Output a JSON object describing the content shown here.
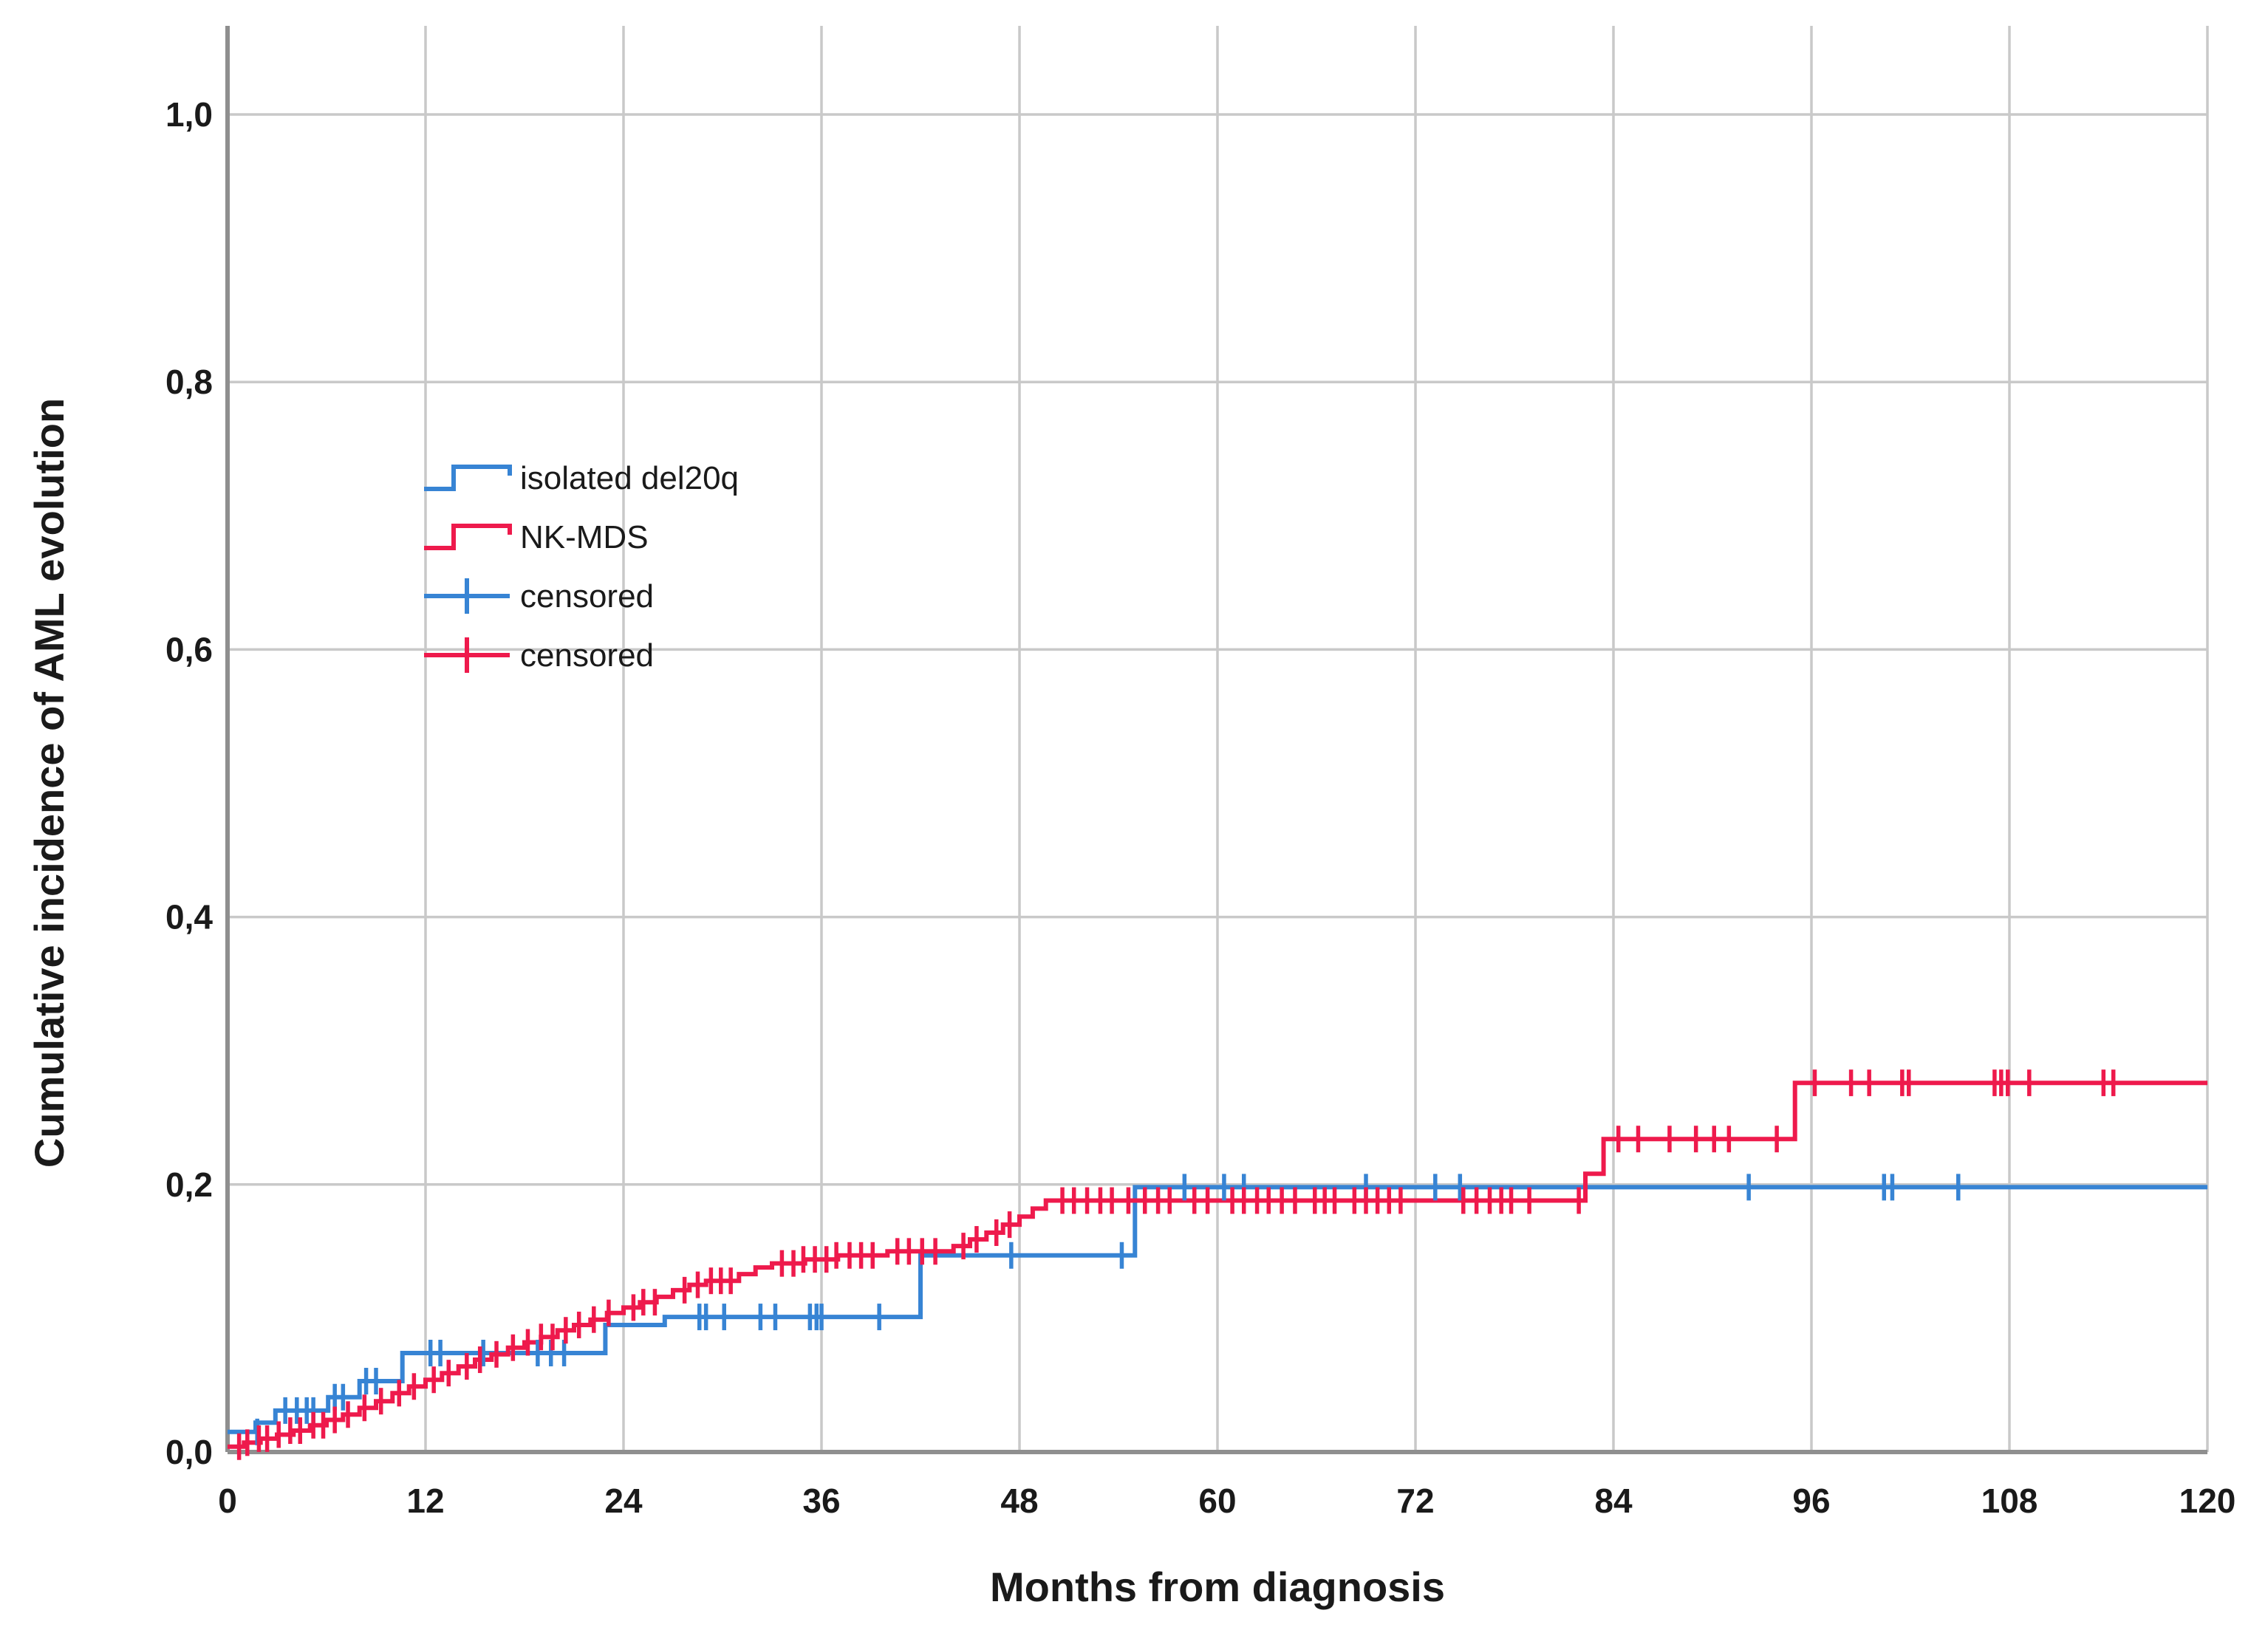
{
  "chart_data": {
    "type": "line",
    "subtype": "step-cumulative-incidence",
    "title": "",
    "xlabel": "Months from diagnosis",
    "ylabel": "Cumulative incidence of AML evolution",
    "xlim": [
      0,
      120
    ],
    "ylim": [
      0,
      1.0
    ],
    "grid": true,
    "grid_color": "#c9c9c9",
    "axis_color": "#8f8f8f",
    "legend_position": "upper-left-inside",
    "xticks": [
      {
        "value": 0,
        "label": "0"
      },
      {
        "value": 12,
        "label": "12"
      },
      {
        "value": 24,
        "label": "24"
      },
      {
        "value": 36,
        "label": "36"
      },
      {
        "value": 48,
        "label": "48"
      },
      {
        "value": 60,
        "label": "60"
      },
      {
        "value": 72,
        "label": "72"
      },
      {
        "value": 84,
        "label": "84"
      },
      {
        "value": 96,
        "label": "96"
      },
      {
        "value": 108,
        "label": "108"
      },
      {
        "value": 120,
        "label": "120"
      }
    ],
    "yticks": [
      {
        "value": 0.0,
        "label": "0,0"
      },
      {
        "value": 0.2,
        "label": "0,2"
      },
      {
        "value": 0.4,
        "label": "0,4"
      },
      {
        "value": 0.6,
        "label": "0,6"
      },
      {
        "value": 0.8,
        "label": "0,8"
      },
      {
        "value": 1.0,
        "label": "1,0"
      }
    ],
    "series": [
      {
        "name": "isolated del20q",
        "censored_label": "censored",
        "color": "#3784d4",
        "type": "step",
        "points": [
          [
            0,
            0.015
          ],
          [
            1.7,
            0.022
          ],
          [
            2.9,
            0.031
          ],
          [
            6.1,
            0.041
          ],
          [
            8.0,
            0.053
          ],
          [
            10.6,
            0.074
          ],
          [
            22.9,
            0.095
          ],
          [
            26.5,
            0.101
          ],
          [
            42.0,
            0.147
          ],
          [
            55.0,
            0.198
          ]
        ],
        "end_x": 120,
        "censored": [
          [
            1.8,
            0.015
          ],
          [
            3.5,
            0.031
          ],
          [
            4.2,
            0.031
          ],
          [
            4.8,
            0.031
          ],
          [
            5.2,
            0.031
          ],
          [
            6.5,
            0.041
          ],
          [
            7.0,
            0.041
          ],
          [
            8.4,
            0.053
          ],
          [
            9.0,
            0.053
          ],
          [
            12.3,
            0.074
          ],
          [
            12.9,
            0.074
          ],
          [
            15.5,
            0.074
          ],
          [
            18.8,
            0.074
          ],
          [
            19.6,
            0.074
          ],
          [
            20.4,
            0.074
          ],
          [
            28.6,
            0.101
          ],
          [
            29.0,
            0.101
          ],
          [
            30.1,
            0.101
          ],
          [
            32.3,
            0.101
          ],
          [
            33.2,
            0.101
          ],
          [
            35.3,
            0.101
          ],
          [
            35.7,
            0.101
          ],
          [
            36.0,
            0.101
          ],
          [
            39.5,
            0.101
          ],
          [
            47.5,
            0.147
          ],
          [
            54.2,
            0.147
          ],
          [
            58.0,
            0.198
          ],
          [
            60.4,
            0.198
          ],
          [
            61.6,
            0.198
          ],
          [
            69.0,
            0.198
          ],
          [
            73.2,
            0.198
          ],
          [
            74.7,
            0.198
          ],
          [
            92.2,
            0.198
          ],
          [
            100.4,
            0.198
          ],
          [
            100.9,
            0.198
          ],
          [
            104.9,
            0.198
          ]
        ]
      },
      {
        "name": "NK-MDS",
        "censored_label": "censored",
        "color": "#ee1a4c",
        "type": "step",
        "points": [
          [
            0,
            0.004
          ],
          [
            1,
            0.007
          ],
          [
            2,
            0.01
          ],
          [
            3,
            0.013
          ],
          [
            4,
            0.016
          ],
          [
            5,
            0.02
          ],
          [
            6,
            0.024
          ],
          [
            7,
            0.028
          ],
          [
            8,
            0.033
          ],
          [
            9,
            0.038
          ],
          [
            10,
            0.044
          ],
          [
            11,
            0.049
          ],
          [
            12,
            0.054
          ],
          [
            13,
            0.059
          ],
          [
            14,
            0.064
          ],
          [
            15,
            0.069
          ],
          [
            16,
            0.073
          ],
          [
            17,
            0.078
          ],
          [
            18,
            0.082
          ],
          [
            19,
            0.086
          ],
          [
            20,
            0.091
          ],
          [
            21,
            0.095
          ],
          [
            22,
            0.099
          ],
          [
            23,
            0.104
          ],
          [
            24,
            0.108
          ],
          [
            25,
            0.112
          ],
          [
            26,
            0.116
          ],
          [
            27,
            0.121
          ],
          [
            28,
            0.125
          ],
          [
            29,
            0.128
          ],
          [
            31,
            0.133
          ],
          [
            32,
            0.138
          ],
          [
            33,
            0.141
          ],
          [
            35,
            0.144
          ],
          [
            37,
            0.147
          ],
          [
            40,
            0.15
          ],
          [
            44,
            0.154
          ],
          [
            45,
            0.159
          ],
          [
            46,
            0.164
          ],
          [
            47,
            0.17
          ],
          [
            48,
            0.176
          ],
          [
            48.8,
            0.182
          ],
          [
            49.6,
            0.188
          ],
          [
            82.3,
            0.208
          ],
          [
            83.4,
            0.234
          ],
          [
            95.0,
            0.276
          ]
        ],
        "end_x": 120,
        "censored": [
          [
            0.7,
            0.004
          ],
          [
            1.2,
            0.007
          ],
          [
            1.9,
            0.01
          ],
          [
            2.4,
            0.01
          ],
          [
            3.1,
            0.013
          ],
          [
            3.8,
            0.016
          ],
          [
            4.4,
            0.016
          ],
          [
            5.2,
            0.02
          ],
          [
            5.8,
            0.02
          ],
          [
            6.5,
            0.024
          ],
          [
            7.3,
            0.028
          ],
          [
            8.3,
            0.033
          ],
          [
            9.3,
            0.038
          ],
          [
            10.4,
            0.044
          ],
          [
            11.3,
            0.049
          ],
          [
            12.5,
            0.054
          ],
          [
            13.4,
            0.059
          ],
          [
            14.5,
            0.064
          ],
          [
            15.3,
            0.069
          ],
          [
            16.3,
            0.073
          ],
          [
            17.3,
            0.078
          ],
          [
            18.2,
            0.082
          ],
          [
            19.0,
            0.086
          ],
          [
            19.7,
            0.086
          ],
          [
            20.5,
            0.091
          ],
          [
            21.3,
            0.095
          ],
          [
            22.2,
            0.099
          ],
          [
            23.1,
            0.104
          ],
          [
            24.6,
            0.108
          ],
          [
            25.2,
            0.112
          ],
          [
            25.9,
            0.112
          ],
          [
            27.7,
            0.121
          ],
          [
            28.5,
            0.125
          ],
          [
            29.3,
            0.128
          ],
          [
            29.9,
            0.128
          ],
          [
            30.5,
            0.128
          ],
          [
            33.6,
            0.141
          ],
          [
            34.3,
            0.141
          ],
          [
            34.9,
            0.144
          ],
          [
            35.6,
            0.144
          ],
          [
            36.3,
            0.144
          ],
          [
            36.9,
            0.147
          ],
          [
            37.7,
            0.147
          ],
          [
            38.4,
            0.147
          ],
          [
            39.1,
            0.147
          ],
          [
            40.6,
            0.15
          ],
          [
            41.3,
            0.15
          ],
          [
            42.1,
            0.15
          ],
          [
            42.9,
            0.15
          ],
          [
            44.6,
            0.154
          ],
          [
            45.4,
            0.159
          ],
          [
            46.6,
            0.164
          ],
          [
            47.4,
            0.17
          ],
          [
            50.6,
            0.188
          ],
          [
            51.3,
            0.188
          ],
          [
            52.1,
            0.188
          ],
          [
            52.9,
            0.188
          ],
          [
            53.6,
            0.188
          ],
          [
            54.6,
            0.188
          ],
          [
            55.6,
            0.188
          ],
          [
            56.4,
            0.188
          ],
          [
            57.1,
            0.188
          ],
          [
            58.6,
            0.188
          ],
          [
            59.4,
            0.188
          ],
          [
            60.9,
            0.188
          ],
          [
            61.6,
            0.188
          ],
          [
            62.4,
            0.188
          ],
          [
            63.1,
            0.188
          ],
          [
            63.9,
            0.188
          ],
          [
            64.7,
            0.188
          ],
          [
            65.9,
            0.188
          ],
          [
            66.5,
            0.188
          ],
          [
            67.1,
            0.188
          ],
          [
            68.3,
            0.188
          ],
          [
            69.0,
            0.188
          ],
          [
            69.7,
            0.188
          ],
          [
            70.4,
            0.188
          ],
          [
            71.1,
            0.188
          ],
          [
            74.9,
            0.188
          ],
          [
            75.7,
            0.188
          ],
          [
            76.5,
            0.188
          ],
          [
            77.2,
            0.188
          ],
          [
            77.8,
            0.188
          ],
          [
            78.9,
            0.188
          ],
          [
            81.9,
            0.188
          ],
          [
            84.3,
            0.234
          ],
          [
            85.5,
            0.234
          ],
          [
            87.4,
            0.234
          ],
          [
            89.0,
            0.234
          ],
          [
            90.1,
            0.234
          ],
          [
            91.0,
            0.234
          ],
          [
            93.9,
            0.234
          ],
          [
            96.2,
            0.276
          ],
          [
            98.4,
            0.276
          ],
          [
            99.5,
            0.276
          ],
          [
            101.5,
            0.276
          ],
          [
            101.9,
            0.276
          ],
          [
            107.1,
            0.276
          ],
          [
            107.5,
            0.276
          ],
          [
            107.9,
            0.276
          ],
          [
            109.2,
            0.276
          ],
          [
            113.7,
            0.276
          ],
          [
            114.3,
            0.276
          ]
        ]
      }
    ],
    "legend": {
      "items": [
        {
          "label": "isolated del20q",
          "symbol": "step-line",
          "color": "#3784d4"
        },
        {
          "label": "NK-MDS",
          "symbol": "step-line",
          "color": "#ee1a4c"
        },
        {
          "label": "censored",
          "symbol": "plus-mark",
          "color": "#3784d4"
        },
        {
          "label": "censored",
          "symbol": "plus-mark",
          "color": "#ee1a4c"
        }
      ]
    }
  }
}
